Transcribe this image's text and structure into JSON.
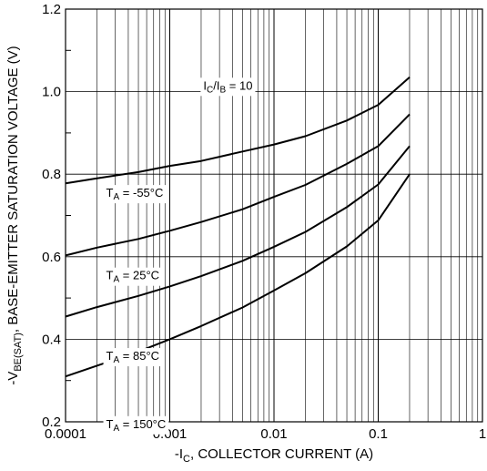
{
  "chart_data": {
    "type": "line",
    "title": "",
    "xscale": "log",
    "xlim": [
      0.0001,
      1
    ],
    "ylim": [
      0.2,
      1.2
    ],
    "grid": true,
    "xlabel": {
      "prefix": "-I",
      "sub": "C",
      "suffix": ", COLLECTOR CURRENT (A)"
    },
    "ylabel": {
      "prefix": "-V",
      "sub": "BE(SAT)",
      "suffix": ", BASE-EMITTER SATURATION VOLTAGE (V)"
    },
    "xticks": [
      {
        "value": 0.0001,
        "label": "0.0001"
      },
      {
        "value": 0.001,
        "label": "0.001"
      },
      {
        "value": 0.01,
        "label": "0.01"
      },
      {
        "value": 0.1,
        "label": "0.1"
      },
      {
        "value": 1,
        "label": "1"
      }
    ],
    "yticks": [
      {
        "value": 0.2,
        "label": "0.2"
      },
      {
        "value": 0.4,
        "label": "0.4"
      },
      {
        "value": 0.6,
        "label": "0.6"
      },
      {
        "value": 0.8,
        "label": "0.8"
      },
      {
        "value": 1.0,
        "label": "1.0"
      },
      {
        "value": 1.2,
        "label": "1.2"
      }
    ],
    "condition_label": {
      "a": "I",
      "a_sub": "C",
      "b": "/I",
      "b_sub": "B",
      "rest": " = 10"
    },
    "series": [
      {
        "label": {
          "main": "T",
          "sub": "A",
          "rest": " = -55°C"
        },
        "points": [
          [
            0.0001,
            0.778
          ],
          [
            0.0002,
            0.79
          ],
          [
            0.0005,
            0.805
          ],
          [
            0.001,
            0.82
          ],
          [
            0.002,
            0.832
          ],
          [
            0.005,
            0.855
          ],
          [
            0.01,
            0.872
          ],
          [
            0.02,
            0.892
          ],
          [
            0.05,
            0.93
          ],
          [
            0.1,
            0.968
          ],
          [
            0.2,
            1.035
          ]
        ]
      },
      {
        "label": {
          "main": "T",
          "sub": "A",
          "rest": " = 25°C"
        },
        "points": [
          [
            0.0001,
            0.603
          ],
          [
            0.0002,
            0.622
          ],
          [
            0.0005,
            0.643
          ],
          [
            0.001,
            0.663
          ],
          [
            0.002,
            0.684
          ],
          [
            0.005,
            0.715
          ],
          [
            0.01,
            0.745
          ],
          [
            0.02,
            0.774
          ],
          [
            0.05,
            0.825
          ],
          [
            0.1,
            0.868
          ],
          [
            0.2,
            0.945
          ]
        ]
      },
      {
        "label": {
          "main": "T",
          "sub": "A",
          "rest": " = 85°C"
        },
        "points": [
          [
            0.0001,
            0.455
          ],
          [
            0.0002,
            0.478
          ],
          [
            0.0005,
            0.505
          ],
          [
            0.001,
            0.528
          ],
          [
            0.002,
            0.553
          ],
          [
            0.005,
            0.59
          ],
          [
            0.01,
            0.624
          ],
          [
            0.02,
            0.66
          ],
          [
            0.05,
            0.72
          ],
          [
            0.1,
            0.775
          ],
          [
            0.2,
            0.868
          ]
        ]
      },
      {
        "label": {
          "main": "T",
          "sub": "A",
          "rest": " = 150°C"
        },
        "points": [
          [
            0.0001,
            0.31
          ],
          [
            0.0002,
            0.336
          ],
          [
            0.0005,
            0.37
          ],
          [
            0.001,
            0.4
          ],
          [
            0.002,
            0.432
          ],
          [
            0.005,
            0.477
          ],
          [
            0.01,
            0.518
          ],
          [
            0.02,
            0.56
          ],
          [
            0.05,
            0.625
          ],
          [
            0.1,
            0.688
          ],
          [
            0.2,
            0.8
          ]
        ]
      }
    ]
  }
}
